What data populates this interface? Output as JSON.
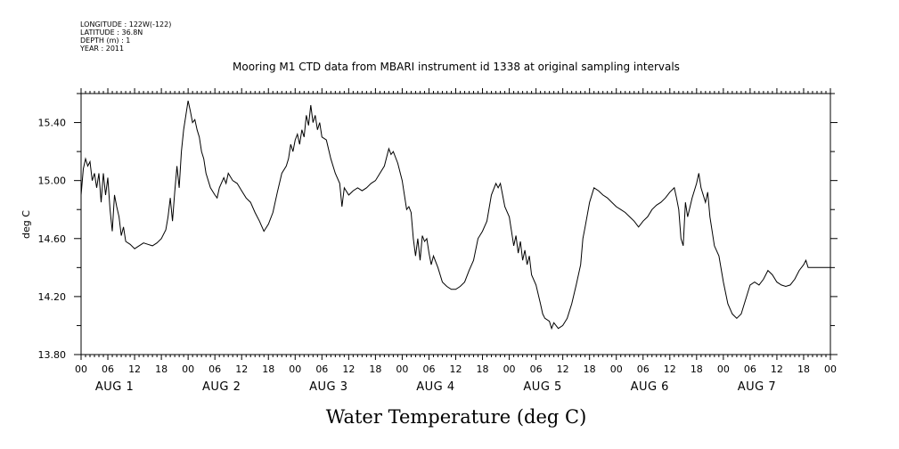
{
  "meta_lines": [
    "LONGITUDE : 122W(-122)",
    "LATITUDE : 36.8N",
    "DEPTH (m) : 1",
    "YEAR : 2011"
  ],
  "chart_data": {
    "type": "line",
    "title": "Mooring M1 CTD data from MBARI instrument id 1338 at original sampling intervals",
    "xlabel": "Water Temperature (deg C)",
    "ylabel": "deg C",
    "x_unit": "hours from Aug 1 00:00, 2011",
    "xlim": [
      0,
      168
    ],
    "ylim": [
      13.8,
      15.6
    ],
    "y_ticks": [
      "13.80",
      "14.20",
      "14.60",
      "15.00",
      "15.40"
    ],
    "y_tick_values": [
      13.8,
      14.2,
      14.6,
      15.0,
      15.4
    ],
    "hour_tick_labels": [
      "00",
      "06",
      "12",
      "18"
    ],
    "day_labels": [
      "AUG 1",
      "AUG 2",
      "AUG 3",
      "AUG 4",
      "AUG 5",
      "AUG 6",
      "AUG 7"
    ],
    "grid": false,
    "series": [
      {
        "points": [
          [
            0,
            14.9
          ],
          [
            0.5,
            15.08
          ],
          [
            1,
            15.15
          ],
          [
            1.5,
            15.1
          ],
          [
            2,
            15.13
          ],
          [
            2.5,
            15.0
          ],
          [
            3,
            15.05
          ],
          [
            3.5,
            14.95
          ],
          [
            4,
            15.05
          ],
          [
            4.5,
            14.85
          ],
          [
            5,
            15.05
          ],
          [
            5.5,
            14.9
          ],
          [
            6,
            15.02
          ],
          [
            6.5,
            14.8
          ],
          [
            7,
            14.65
          ],
          [
            7.5,
            14.9
          ],
          [
            8,
            14.82
          ],
          [
            8.5,
            14.75
          ],
          [
            9,
            14.62
          ],
          [
            9.5,
            14.68
          ],
          [
            10,
            14.58
          ],
          [
            11,
            14.56
          ],
          [
            12,
            14.53
          ],
          [
            13,
            14.55
          ],
          [
            14,
            14.57
          ],
          [
            15,
            14.56
          ],
          [
            16,
            14.55
          ],
          [
            17,
            14.57
          ],
          [
            18,
            14.6
          ],
          [
            19,
            14.66
          ],
          [
            19.5,
            14.75
          ],
          [
            20,
            14.88
          ],
          [
            20.5,
            14.72
          ],
          [
            21,
            14.92
          ],
          [
            21.5,
            15.1
          ],
          [
            22,
            14.95
          ],
          [
            22.5,
            15.2
          ],
          [
            23,
            15.35
          ],
          [
            23.5,
            15.45
          ],
          [
            24,
            15.55
          ],
          [
            24.5,
            15.48
          ],
          [
            25,
            15.4
          ],
          [
            25.5,
            15.42
          ],
          [
            26,
            15.35
          ],
          [
            26.5,
            15.3
          ],
          [
            27,
            15.2
          ],
          [
            27.5,
            15.15
          ],
          [
            28,
            15.05
          ],
          [
            29,
            14.95
          ],
          [
            30,
            14.9
          ],
          [
            30.5,
            14.88
          ],
          [
            31,
            14.95
          ],
          [
            32,
            15.02
          ],
          [
            32.5,
            14.98
          ],
          [
            33,
            15.05
          ],
          [
            34,
            15.0
          ],
          [
            35,
            14.98
          ],
          [
            36,
            14.93
          ],
          [
            37,
            14.88
          ],
          [
            38,
            14.85
          ],
          [
            39,
            14.78
          ],
          [
            40,
            14.72
          ],
          [
            41,
            14.65
          ],
          [
            42,
            14.7
          ],
          [
            43,
            14.78
          ],
          [
            44,
            14.92
          ],
          [
            45,
            15.05
          ],
          [
            46,
            15.1
          ],
          [
            46.5,
            15.15
          ],
          [
            47,
            15.25
          ],
          [
            47.5,
            15.2
          ],
          [
            48,
            15.28
          ],
          [
            48.5,
            15.32
          ],
          [
            49,
            15.25
          ],
          [
            49.5,
            15.35
          ],
          [
            50,
            15.3
          ],
          [
            50.5,
            15.45
          ],
          [
            51,
            15.38
          ],
          [
            51.5,
            15.52
          ],
          [
            52,
            15.4
          ],
          [
            52.5,
            15.45
          ],
          [
            53,
            15.35
          ],
          [
            53.5,
            15.4
          ],
          [
            54,
            15.3
          ],
          [
            55,
            15.28
          ],
          [
            56,
            15.15
          ],
          [
            57,
            15.05
          ],
          [
            58,
            14.98
          ],
          [
            58.5,
            14.82
          ],
          [
            59,
            14.95
          ],
          [
            60,
            14.9
          ],
          [
            61,
            14.93
          ],
          [
            62,
            14.95
          ],
          [
            63,
            14.93
          ],
          [
            64,
            14.95
          ],
          [
            65,
            14.98
          ],
          [
            66,
            15.0
          ],
          [
            67,
            15.05
          ],
          [
            68,
            15.1
          ],
          [
            69,
            15.22
          ],
          [
            69.5,
            15.18
          ],
          [
            70,
            15.2
          ],
          [
            71,
            15.12
          ],
          [
            72,
            15.0
          ],
          [
            72.5,
            14.9
          ],
          [
            73,
            14.8
          ],
          [
            73.5,
            14.82
          ],
          [
            74,
            14.78
          ],
          [
            74.5,
            14.6
          ],
          [
            75,
            14.48
          ],
          [
            75.5,
            14.6
          ],
          [
            76,
            14.45
          ],
          [
            76.5,
            14.62
          ],
          [
            77,
            14.58
          ],
          [
            77.5,
            14.6
          ],
          [
            78,
            14.5
          ],
          [
            78.5,
            14.42
          ],
          [
            79,
            14.48
          ],
          [
            80,
            14.4
          ],
          [
            81,
            14.3
          ],
          [
            82,
            14.27
          ],
          [
            83,
            14.25
          ],
          [
            84,
            14.25
          ],
          [
            85,
            14.27
          ],
          [
            86,
            14.3
          ],
          [
            87,
            14.38
          ],
          [
            88,
            14.45
          ],
          [
            89,
            14.6
          ],
          [
            90,
            14.65
          ],
          [
            91,
            14.72
          ],
          [
            92,
            14.9
          ],
          [
            93,
            14.98
          ],
          [
            93.5,
            14.95
          ],
          [
            94,
            14.98
          ],
          [
            94.5,
            14.9
          ],
          [
            95,
            14.82
          ],
          [
            96,
            14.75
          ],
          [
            96.5,
            14.65
          ],
          [
            97,
            14.55
          ],
          [
            97.5,
            14.62
          ],
          [
            98,
            14.5
          ],
          [
            98.5,
            14.58
          ],
          [
            99,
            14.45
          ],
          [
            99.5,
            14.52
          ],
          [
            100,
            14.42
          ],
          [
            100.5,
            14.48
          ],
          [
            101,
            14.35
          ],
          [
            102,
            14.28
          ],
          [
            103,
            14.15
          ],
          [
            103.5,
            14.08
          ],
          [
            104,
            14.05
          ],
          [
            105,
            14.03
          ],
          [
            105.5,
            13.98
          ],
          [
            106,
            14.02
          ],
          [
            106.5,
            14.0
          ],
          [
            107,
            13.98
          ],
          [
            108,
            14.0
          ],
          [
            109,
            14.05
          ],
          [
            110,
            14.15
          ],
          [
            111,
            14.28
          ],
          [
            112,
            14.42
          ],
          [
            112.5,
            14.6
          ],
          [
            113,
            14.68
          ],
          [
            114,
            14.85
          ],
          [
            115,
            14.95
          ],
          [
            116,
            14.93
          ],
          [
            117,
            14.9
          ],
          [
            118,
            14.88
          ],
          [
            119,
            14.85
          ],
          [
            120,
            14.82
          ],
          [
            121,
            14.8
          ],
          [
            122,
            14.78
          ],
          [
            123,
            14.75
          ],
          [
            124,
            14.72
          ],
          [
            125,
            14.68
          ],
          [
            126,
            14.72
          ],
          [
            127,
            14.75
          ],
          [
            128,
            14.8
          ],
          [
            129,
            14.83
          ],
          [
            130,
            14.85
          ],
          [
            131,
            14.88
          ],
          [
            132,
            14.92
          ],
          [
            133,
            14.95
          ],
          [
            133.5,
            14.88
          ],
          [
            134,
            14.8
          ],
          [
            134.5,
            14.6
          ],
          [
            135,
            14.55
          ],
          [
            135.5,
            14.85
          ],
          [
            136,
            14.75
          ],
          [
            137,
            14.88
          ],
          [
            138,
            14.98
          ],
          [
            138.5,
            15.05
          ],
          [
            139,
            14.95
          ],
          [
            140,
            14.85
          ],
          [
            140.5,
            14.92
          ],
          [
            141,
            14.75
          ],
          [
            142,
            14.55
          ],
          [
            143,
            14.48
          ],
          [
            144,
            14.3
          ],
          [
            145,
            14.15
          ],
          [
            146,
            14.08
          ],
          [
            147,
            14.05
          ],
          [
            148,
            14.08
          ],
          [
            149,
            14.18
          ],
          [
            150,
            14.28
          ],
          [
            151,
            14.3
          ],
          [
            152,
            14.28
          ],
          [
            153,
            14.32
          ],
          [
            154,
            14.38
          ],
          [
            155,
            14.35
          ],
          [
            156,
            14.3
          ],
          [
            157,
            14.28
          ],
          [
            158,
            14.27
          ],
          [
            159,
            14.28
          ],
          [
            160,
            14.32
          ],
          [
            161,
            14.38
          ],
          [
            162,
            14.42
          ],
          [
            162.5,
            14.45
          ],
          [
            163,
            14.4
          ],
          [
            168,
            14.4
          ]
        ]
      }
    ]
  }
}
